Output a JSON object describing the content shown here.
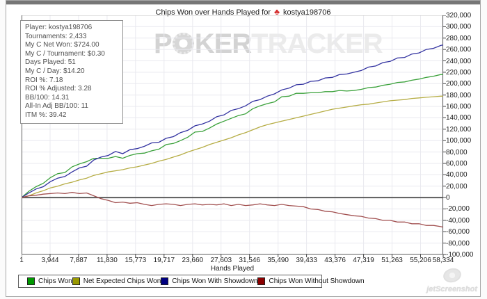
{
  "header": {
    "title_prefix": "Chips Won over Hands Played for",
    "title_icon_glyph": "♣",
    "player": "kostya198706"
  },
  "watermark": {
    "part1": "P",
    "part2": "KER",
    "part3": "TRACKER"
  },
  "footer_watermark": {
    "text": "jetScreenshot"
  },
  "stats_panel": {
    "lines": [
      "Player: kostya198706",
      "Tournaments: 2,433",
      "My C Net Won: $724.00",
      "My C / Tournament: $0.30",
      "Days Played: 51",
      "My C / Day: $14.20",
      "ROI %: 7.18",
      "ROI % Adjusted: 3.28",
      "BB/100: 14.31",
      "All-In Adj BB/100: 11",
      "ITM %: 39.42"
    ]
  },
  "chart_data": {
    "type": "line",
    "title": "Chips Won over Hands Played for kostya198706",
    "xlabel": "Hands Played",
    "ylabel": "",
    "xlim": [
      1,
      58334
    ],
    "ylim": [
      -100000,
      320000
    ],
    "grid": true,
    "legend_position": "bottom",
    "xticks": [
      1,
      3944,
      7887,
      11830,
      15773,
      19717,
      23660,
      27603,
      31546,
      35490,
      39433,
      43376,
      47319,
      51263,
      55206,
      58334
    ],
    "yticks": [
      320000,
      300000,
      280000,
      260000,
      240000,
      220000,
      200000,
      180000,
      160000,
      140000,
      120000,
      100000,
      80000,
      60000,
      40000,
      20000,
      0,
      -20000,
      -40000,
      -60000,
      -80000,
      -100000
    ],
    "x": [
      1,
      1000,
      2000,
      3000,
      4000,
      5000,
      6000,
      7000,
      8000,
      9000,
      10000,
      11000,
      12000,
      13000,
      14000,
      15000,
      16000,
      17000,
      18000,
      19000,
      20000,
      21000,
      22000,
      23000,
      24000,
      25000,
      26000,
      27000,
      28000,
      29000,
      30000,
      31000,
      32000,
      33000,
      34000,
      35000,
      36000,
      37000,
      38000,
      39000,
      40000,
      41000,
      42000,
      43000,
      44000,
      45000,
      46000,
      47000,
      48000,
      49000,
      50000,
      51000,
      52000,
      53000,
      54000,
      55000,
      56000,
      57000,
      58000,
      58334
    ],
    "series": [
      {
        "name": "Chips Won",
        "color": "#3aa13a",
        "swatch": "#009900",
        "values": [
          0,
          11000,
          19000,
          25000,
          35000,
          42000,
          44000,
          54000,
          59000,
          63000,
          69000,
          69000,
          69000,
          72000,
          69000,
          74000,
          77000,
          78000,
          82000,
          85000,
          93000,
          95000,
          100000,
          106000,
          115000,
          116000,
          122000,
          129000,
          134000,
          139000,
          144000,
          147000,
          156000,
          161000,
          165000,
          168000,
          177000,
          178000,
          183000,
          183000,
          184000,
          184000,
          186000,
          186000,
          188000,
          187000,
          188000,
          190000,
          193000,
          194000,
          197000,
          199000,
          202000,
          203000,
          206000,
          208000,
          211000,
          213000,
          216000,
          216000
        ]
      },
      {
        "name": "Net Expected Chips Won",
        "color": "#b6ad45",
        "swatch": "#999900",
        "values": [
          0,
          3000,
          8000,
          12000,
          17000,
          20000,
          24000,
          27000,
          31000,
          34000,
          39000,
          42000,
          45000,
          47000,
          49000,
          52000,
          54000,
          57000,
          60000,
          64000,
          67000,
          71000,
          75000,
          80000,
          84000,
          88000,
          93000,
          97000,
          101000,
          105000,
          110000,
          114000,
          119000,
          124000,
          128000,
          131000,
          134000,
          137000,
          140000,
          143000,
          146000,
          149000,
          152000,
          155000,
          157000,
          159000,
          161000,
          163000,
          164000,
          166000,
          168000,
          170000,
          171000,
          172000,
          174000,
          175000,
          176000,
          177000,
          178000,
          178000
        ]
      },
      {
        "name": "Chips Won With Showdown",
        "color": "#3232a0",
        "swatch": "#000080",
        "values": [
          0,
          8000,
          15000,
          19000,
          28000,
          34000,
          37000,
          45000,
          52000,
          55000,
          66000,
          71000,
          74000,
          81000,
          77000,
          84000,
          86000,
          90000,
          96000,
          97000,
          104000,
          107000,
          114000,
          118000,
          126000,
          129000,
          134000,
          142000,
          145000,
          153000,
          156000,
          161000,
          169000,
          172000,
          178000,
          182000,
          189000,
          192000,
          198000,
          199000,
          204000,
          205000,
          210000,
          211000,
          216000,
          217000,
          220000,
          223000,
          229000,
          231000,
          237000,
          239000,
          245000,
          246000,
          252000,
          254000,
          260000,
          262000,
          267000,
          268000
        ]
      },
      {
        "name": "Chips Won Without Showdown",
        "color": "#a14f4f",
        "swatch": "#8b0000",
        "values": [
          0,
          3000,
          4000,
          6000,
          7000,
          8000,
          7000,
          9000,
          7000,
          8000,
          3000,
          -2000,
          -5000,
          -9000,
          -8000,
          -10000,
          -9000,
          -12000,
          -14000,
          -12000,
          -11000,
          -12000,
          -14000,
          -12000,
          -11000,
          -13000,
          -12000,
          -13000,
          -11000,
          -14000,
          -12000,
          -14000,
          -13000,
          -11000,
          -13000,
          -14000,
          -12000,
          -14000,
          -15000,
          -16000,
          -20000,
          -21000,
          -24000,
          -25000,
          -28000,
          -30000,
          -32000,
          -33000,
          -36000,
          -37000,
          -40000,
          -40000,
          -43000,
          -43000,
          -46000,
          -46000,
          -49000,
          -49000,
          -51000,
          -52000
        ]
      }
    ]
  }
}
